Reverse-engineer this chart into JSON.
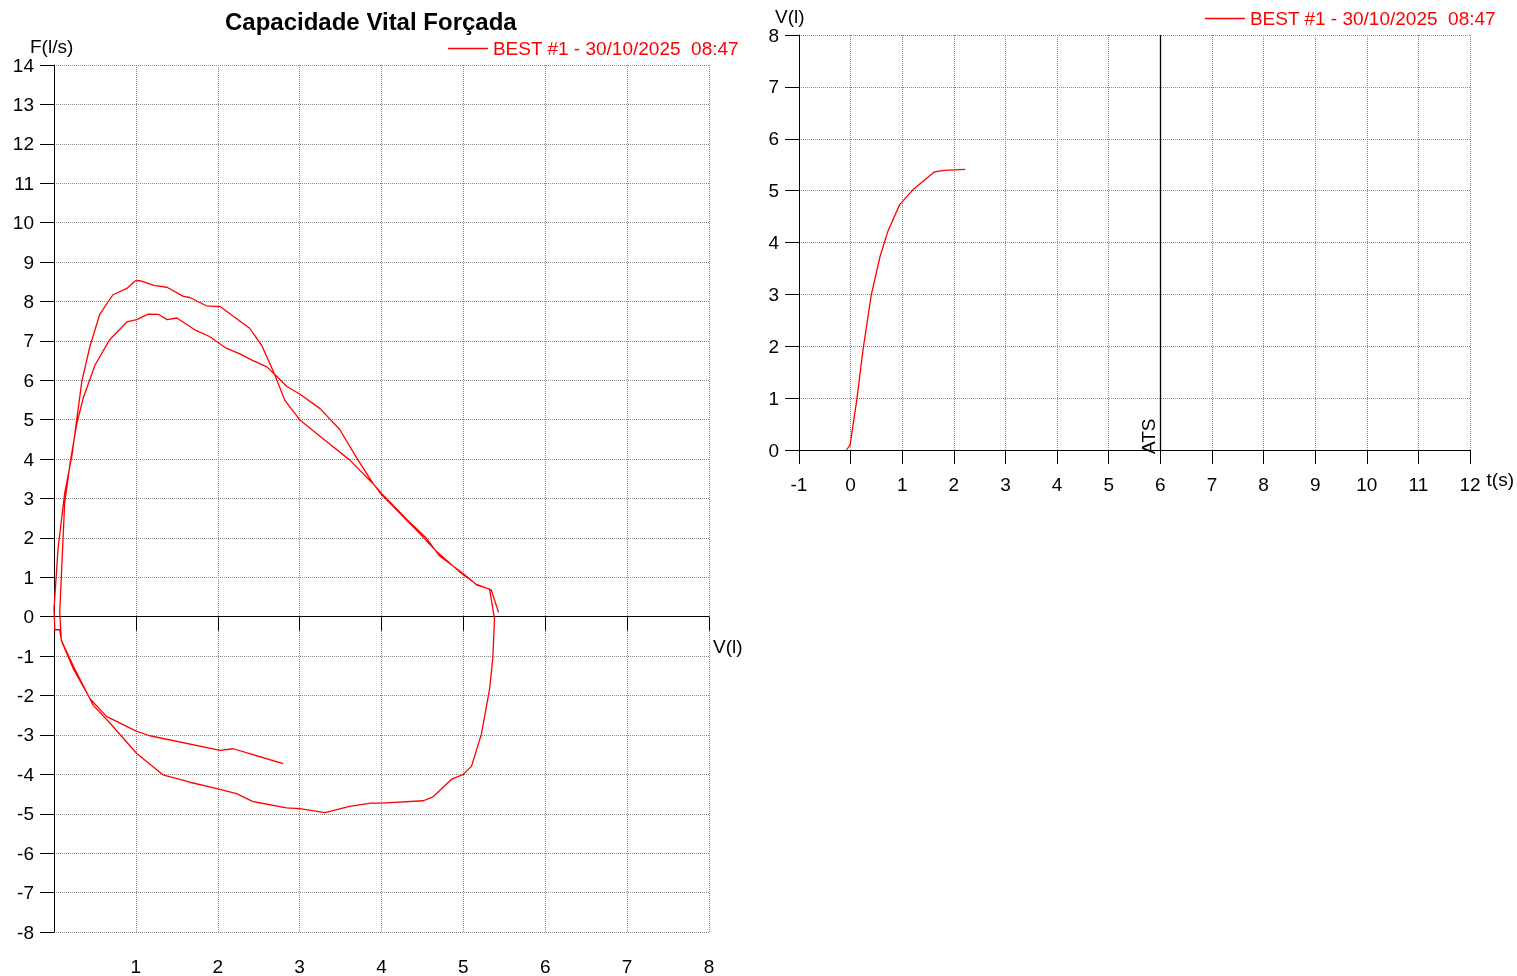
{
  "chart_data": [
    {
      "type": "line",
      "title": "Capacidade Vital Forçada",
      "xlabel": "V(l)",
      "ylabel": "F(l/s)",
      "legend": "top right",
      "grid": true,
      "marker": "none",
      "line_style": "solid",
      "xlim": [
        0,
        8
      ],
      "xticks": [
        {
          "value": 0,
          "label": null
        },
        1,
        2,
        3,
        4,
        5,
        6,
        7,
        8
      ],
      "ylim": [
        -8,
        14
      ],
      "yticks": [
        -8,
        -7,
        -6,
        -5,
        -4,
        -3,
        -2,
        -1,
        0,
        1,
        2,
        3,
        4,
        5,
        6,
        7,
        8,
        9,
        10,
        11,
        12,
        13,
        14
      ],
      "series": [
        {
          "name": "BEST #1 - 30/10/2025  08:47",
          "color": "#ff0000",
          "x": [
            2.8,
            2.19,
            2.03,
            1.17,
            1.01,
            0.64,
            0.44,
            0.24,
            0.09,
            0.07,
            0.13,
            0.2,
            0.28,
            0.36,
            0.5,
            0.68,
            0.89,
            1.01,
            1.15,
            1.28,
            1.38,
            1.5,
            1.72,
            1.9,
            2.09,
            2.27,
            2.43,
            2.6,
            2.72,
            2.84,
            3.0,
            3.25,
            3.49,
            3.7,
            3.9,
            4.0,
            4.31,
            4.55,
            4.71,
            5.0,
            5.16,
            5.32,
            5.38,
            5.36,
            5.32,
            5.22,
            5.1,
            5.0,
            4.86,
            4.63,
            4.51,
            4.0,
            3.87,
            3.61,
            3.31,
            3.0,
            2.84,
            2.43,
            2.23,
            1.99,
            1.66,
            1.33,
            1.01,
            0.68,
            0.48,
            0.24,
            0.09,
            0.07,
            0.01,
            0.0,
            0.05,
            0.13,
            0.22,
            0.34,
            0.44,
            0.56,
            0.72,
            0.89,
            0.99,
            1.05,
            1.23,
            1.38,
            1.58,
            1.66,
            1.86,
            2.03,
            2.23,
            2.39,
            2.54,
            2.68,
            2.82,
            3.0,
            3.29,
            3.61,
            3.9,
            4.0,
            4.45,
            4.67,
            4.96,
            5.16,
            5.34,
            5.43
          ],
          "values": [
            -3.73,
            -3.35,
            -3.39,
            -3.02,
            -2.91,
            -2.53,
            -2.08,
            -1.34,
            -0.61,
            0.12,
            2.88,
            3.94,
            4.92,
            5.57,
            6.38,
            7.03,
            7.48,
            7.54,
            7.68,
            7.67,
            7.54,
            7.58,
            7.28,
            7.11,
            6.83,
            6.67,
            6.5,
            6.34,
            6.1,
            5.85,
            5.65,
            5.28,
            4.75,
            4.02,
            3.37,
            3.13,
            2.47,
            1.99,
            1.54,
            1.09,
            0.81,
            0.7,
            -0.05,
            -1.03,
            -1.84,
            -2.98,
            -3.79,
            -4.0,
            -4.12,
            -4.57,
            -4.67,
            -4.73,
            -4.73,
            -4.81,
            -4.97,
            -4.87,
            -4.85,
            -4.69,
            -4.49,
            -4.36,
            -4.2,
            -4.01,
            -3.47,
            -2.69,
            -2.25,
            -1.27,
            -0.6,
            -0.33,
            -0.33,
            0.2,
            1.74,
            3.13,
            4.1,
            5.97,
            6.87,
            7.68,
            8.17,
            8.33,
            8.52,
            8.53,
            8.4,
            8.36,
            8.13,
            8.1,
            7.89,
            7.87,
            7.56,
            7.32,
            6.87,
            6.22,
            5.49,
            5.0,
            4.51,
            3.98,
            3.37,
            3.1,
            2.15,
            1.66,
            1.13,
            0.82,
            0.68,
            0.11
          ]
        }
      ]
    },
    {
      "type": "line",
      "xlabel": "t(s)",
      "ylabel": "V(l)",
      "legend": "top right",
      "grid": true,
      "marker": "none",
      "line_style": "solid",
      "xlim": [
        -1,
        12
      ],
      "xticks": [
        -1,
        0,
        1,
        2,
        3,
        4,
        5,
        6,
        7,
        8,
        9,
        10,
        11,
        12
      ],
      "ylim": [
        0,
        8
      ],
      "yticks": [
        0,
        1,
        2,
        3,
        4,
        5,
        6,
        7,
        8
      ],
      "ref_lines": [
        {
          "axis": "x",
          "value": 6,
          "label": "ATS",
          "color": "#000000"
        }
      ],
      "series": [
        {
          "name": "BEST #1 - 30/10/2025  08:47",
          "color": "#ff0000",
          "x": [
            -0.08,
            -0.01,
            0.12,
            0.24,
            0.4,
            0.57,
            0.72,
            0.95,
            1.21,
            1.62,
            1.81,
            2.22
          ],
          "values": [
            0,
            0.1,
            0.97,
            1.93,
            2.99,
            3.73,
            4.21,
            4.73,
            5.02,
            5.36,
            5.39,
            5.41
          ]
        }
      ]
    }
  ]
}
